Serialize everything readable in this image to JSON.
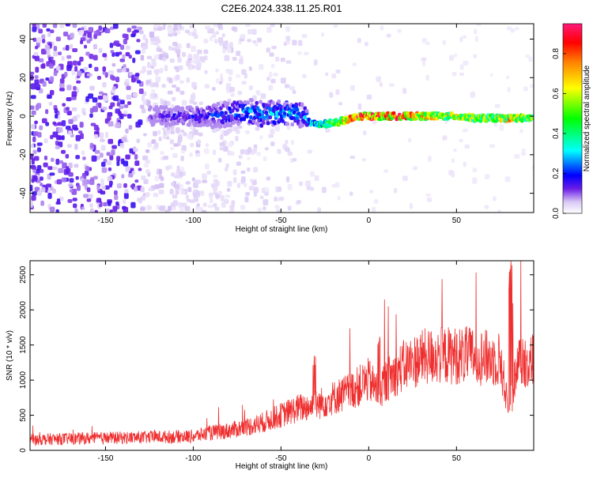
{
  "title": "C2E6.2024.338.11.25.R01",
  "chart_data": [
    {
      "type": "heatmap",
      "xlabel": "Height of straight line (km)",
      "ylabel": "Frequency (Hz)",
      "xlim": [
        -193,
        94
      ],
      "ylim": [
        -50,
        48
      ],
      "x_ticks": [
        -150,
        -100,
        -50,
        0,
        50
      ],
      "y_ticks": [
        -40,
        -20,
        0,
        20,
        40
      ],
      "colorbar": {
        "label": "Normalized spectral amplitude",
        "range": [
          0,
          0.95
        ],
        "ticks": [
          0.0,
          0.2,
          0.4,
          0.6,
          0.8
        ]
      },
      "ridge": {
        "x": [
          -125,
          -110,
          -95,
          -80,
          -70,
          -60,
          -45,
          -38,
          -32,
          -25,
          -18,
          -12,
          -5,
          0,
          10,
          20,
          30,
          40,
          50,
          60,
          70,
          80,
          90
        ],
        "freq": [
          0,
          0,
          0,
          1,
          3,
          1,
          2,
          0,
          -4,
          -4,
          -3,
          -2,
          0,
          0,
          0,
          0,
          0,
          0,
          0,
          -1,
          -1,
          -1,
          -1
        ],
        "amplitude": [
          0.12,
          0.18,
          0.2,
          0.25,
          0.3,
          0.3,
          0.32,
          0.25,
          0.35,
          0.45,
          0.6,
          0.75,
          0.9,
          0.9,
          0.88,
          0.85,
          0.7,
          0.65,
          0.65,
          0.6,
          0.6,
          0.75,
          0.55
        ]
      }
    },
    {
      "type": "line",
      "xlabel": "Height of straight line (km)",
      "ylabel": "SNR (10 * v/v)",
      "xlim": [
        -193,
        94
      ],
      "ylim": [
        0,
        2700
      ],
      "x_ticks": [
        -150,
        -100,
        -50,
        0,
        50
      ],
      "y_ticks": [
        0,
        500,
        1000,
        1500,
        2000,
        2500
      ],
      "color": "#ef2f2f",
      "x": [
        -193,
        -180,
        -160,
        -140,
        -120,
        -100,
        -90,
        -80,
        -70,
        -60,
        -50,
        -40,
        -30,
        -20,
        -10,
        0,
        5,
        10,
        20,
        30,
        40,
        50,
        60,
        70,
        75,
        80,
        85,
        90,
        94
      ],
      "values": [
        150,
        160,
        170,
        180,
        190,
        200,
        250,
        280,
        330,
        400,
        500,
        600,
        640,
        750,
        850,
        1000,
        850,
        1000,
        1200,
        1320,
        1350,
        1350,
        1350,
        1300,
        1300,
        500,
        1300,
        1250,
        1300
      ]
    }
  ]
}
